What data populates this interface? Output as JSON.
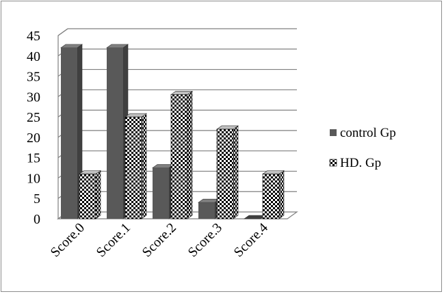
{
  "chart_data": {
    "type": "bar",
    "categories": [
      "Score.0",
      "Score.1",
      "Score.2",
      "Score.3",
      "Score.4"
    ],
    "series": [
      {
        "name": "control Gp",
        "values": [
          42,
          42,
          12.5,
          4,
          0
        ],
        "color": "#595959",
        "pattern": "solid"
      },
      {
        "name": "HD. Gp",
        "values": [
          11,
          25,
          30.5,
          22,
          11
        ],
        "color": "#000000",
        "pattern": "checker"
      }
    ],
    "ylim": [
      0,
      45
    ],
    "yticks": [
      0,
      5,
      10,
      15,
      20,
      25,
      30,
      35,
      40,
      45
    ],
    "grid": true,
    "three_d": true,
    "legend_position": "right",
    "title": "",
    "xlabel": "",
    "ylabel": ""
  }
}
